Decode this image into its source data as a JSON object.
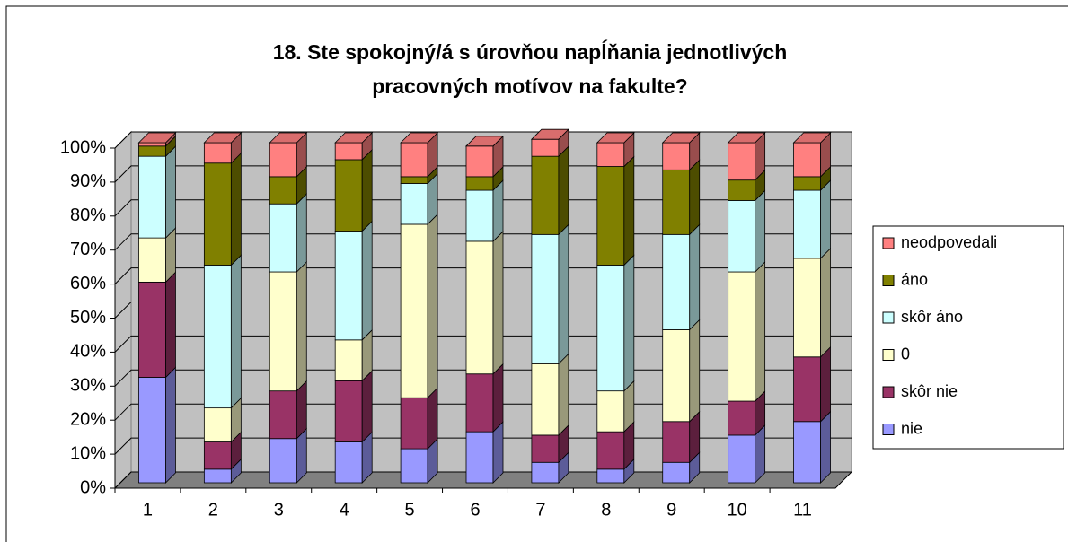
{
  "chart_data": {
    "type": "bar",
    "stacked": true,
    "title": [
      "18. Ste spokojný/á s úrovňou napĺňania jednotlivých",
      "pracovných motívov na fakulte?"
    ],
    "categories": [
      "1",
      "2",
      "3",
      "4",
      "5",
      "6",
      "7",
      "8",
      "9",
      "10",
      "11"
    ],
    "series": [
      {
        "name": "nie",
        "color": "#9999ff",
        "values": [
          31,
          4,
          13,
          12,
          10,
          15,
          6,
          4,
          6,
          14,
          18
        ]
      },
      {
        "name": "skôr nie",
        "color": "#993366",
        "values": [
          28,
          8,
          14,
          18,
          15,
          17,
          8,
          11,
          12,
          10,
          19
        ]
      },
      {
        "name": "0",
        "color": "#ffffcc",
        "values": [
          13,
          10,
          35,
          12,
          51,
          39,
          21,
          12,
          27,
          38,
          29
        ]
      },
      {
        "name": "skôr áno",
        "color": "#ccffff",
        "values": [
          24,
          42,
          20,
          32,
          12,
          15,
          38,
          37,
          28,
          21,
          20
        ]
      },
      {
        "name": "áno",
        "color": "#808000",
        "values": [
          3,
          30,
          8,
          21,
          2,
          4,
          23,
          29,
          19,
          6,
          4
        ]
      },
      {
        "name": "neodpovedali",
        "color": "#ff8080",
        "values": [
          1,
          6,
          10,
          5,
          10,
          9,
          5,
          7,
          8,
          11,
          10
        ]
      }
    ],
    "ylim": [
      0,
      100
    ],
    "yticks": [
      {
        "value": 0,
        "label": "0%"
      },
      {
        "value": 10,
        "label": "10%"
      },
      {
        "value": 20,
        "label": "20%"
      },
      {
        "value": 30,
        "label": "30%"
      },
      {
        "value": 40,
        "label": "40%"
      },
      {
        "value": 50,
        "label": "50%"
      },
      {
        "value": 60,
        "label": "60%"
      },
      {
        "value": 70,
        "label": "70%"
      },
      {
        "value": 80,
        "label": "80%"
      },
      {
        "value": 90,
        "label": "90%"
      },
      {
        "value": 100,
        "label": "100%"
      }
    ],
    "grid": true,
    "legend": "right"
  }
}
